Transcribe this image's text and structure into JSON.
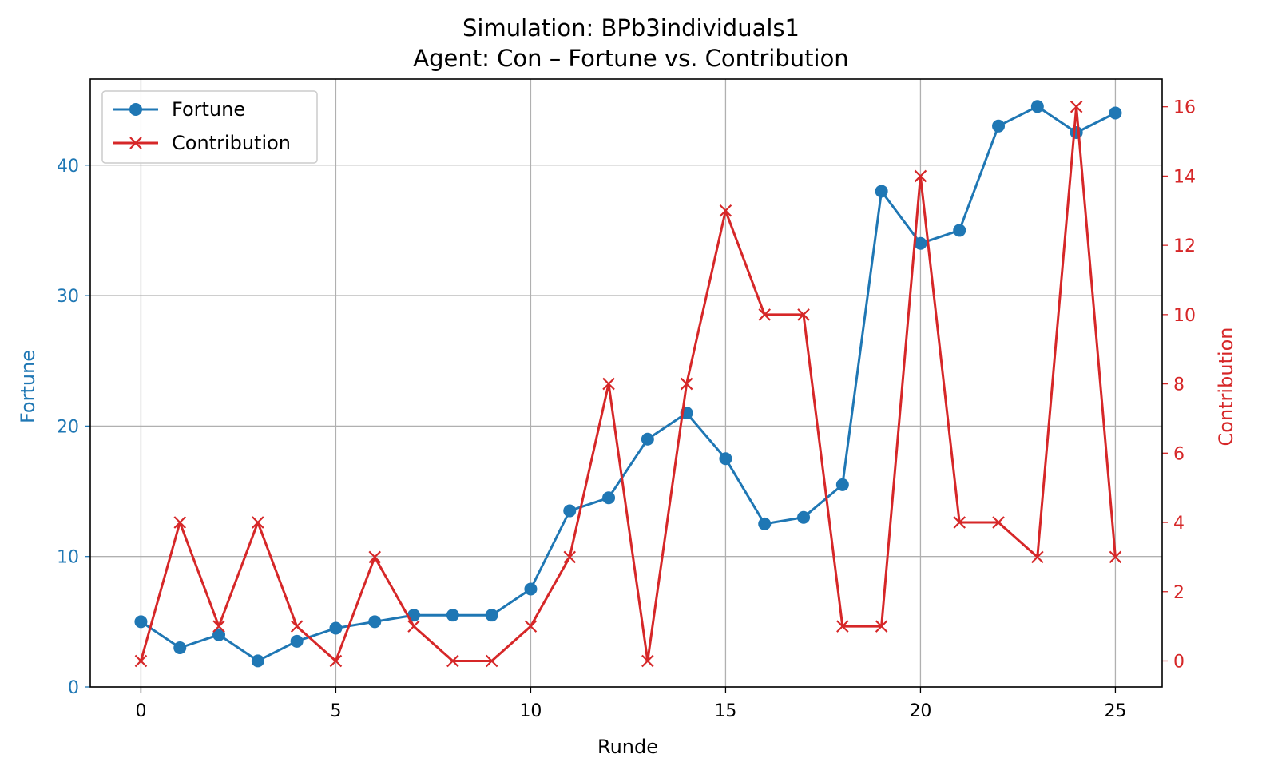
{
  "chart_data": {
    "type": "line",
    "title": "Simulation: BPb3individuals1",
    "subtitle": "Agent: Con – Fortune vs. Contribution",
    "xlabel": "Runde",
    "ylabel_left": "Fortune",
    "ylabel_right": "Contribution",
    "x": [
      0,
      1,
      2,
      3,
      4,
      5,
      6,
      7,
      8,
      9,
      10,
      11,
      12,
      13,
      14,
      15,
      16,
      17,
      18,
      19,
      20,
      21,
      22,
      23,
      24,
      25
    ],
    "xlim": [
      -1.3,
      26.2
    ],
    "xticks": [
      0,
      5,
      10,
      15,
      20,
      25
    ],
    "ylim_left": [
      0,
      46.6
    ],
    "yticks_left": [
      0,
      10,
      20,
      30,
      40
    ],
    "ylim_right": [
      -0.75,
      16.8
    ],
    "yticks_right": [
      0,
      2,
      4,
      6,
      8,
      10,
      12,
      14,
      16
    ],
    "grid": true,
    "legend_position": "top-left",
    "series": [
      {
        "name": "Fortune",
        "axis": "left",
        "color": "#1f77b4",
        "marker": "circle",
        "values": [
          5,
          3,
          4,
          2,
          3.5,
          4.5,
          5,
          5.5,
          5.5,
          5.5,
          7.5,
          13.5,
          14.5,
          19,
          21,
          17.5,
          12.5,
          13,
          15.5,
          38,
          34,
          35,
          43,
          44.5,
          42.5,
          44
        ]
      },
      {
        "name": "Contribution",
        "axis": "right",
        "color": "#d62728",
        "marker": "x",
        "values": [
          0,
          4,
          1,
          4,
          1,
          0,
          3,
          1,
          0,
          0,
          1,
          3,
          8,
          0,
          8,
          13,
          10,
          10,
          1,
          1,
          14,
          4,
          4,
          3,
          16,
          3
        ]
      }
    ]
  }
}
